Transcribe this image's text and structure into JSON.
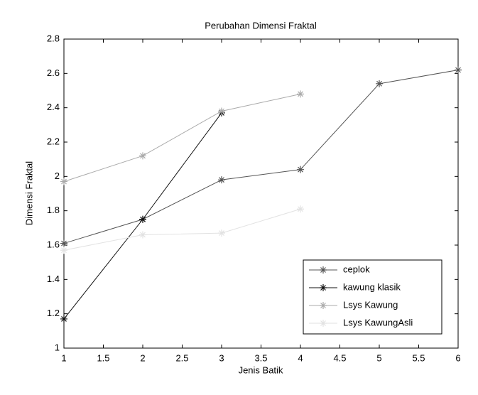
{
  "chart_data": {
    "type": "line",
    "title": "Perubahan Dimensi Fraktal",
    "x_label": "Jenis Batik",
    "y_label": "Dimensi Fraktal",
    "xlim": [
      1,
      6
    ],
    "ylim": [
      1,
      2.8
    ],
    "xticks": [
      1,
      1.5,
      2,
      2.5,
      3,
      3.5,
      4,
      4.5,
      5,
      5.5,
      6
    ],
    "yticks": [
      1,
      1.2,
      1.4,
      1.6,
      1.8,
      2,
      2.2,
      2.4,
      2.6,
      2.8
    ],
    "grid": false,
    "legend_position": "lower right",
    "series": [
      {
        "name": "ceplok",
        "color": "#555555",
        "x": [
          1,
          2,
          3,
          4,
          5,
          6
        ],
        "values": [
          1.61,
          1.75,
          1.98,
          2.04,
          2.54,
          2.62
        ]
      },
      {
        "name": "kawung klasik",
        "color": "#111111",
        "x": [
          1,
          2,
          3
        ],
        "values": [
          1.17,
          1.75,
          2.37
        ]
      },
      {
        "name": "Lsys Kawung",
        "color": "#aaaaaa",
        "x": [
          1,
          2,
          3,
          4
        ],
        "values": [
          1.97,
          2.12,
          2.38,
          2.48
        ]
      },
      {
        "name": "Lsys KawungAsli",
        "color": "#e2e2e2",
        "x": [
          1,
          2,
          3,
          4
        ],
        "values": [
          1.57,
          1.66,
          1.67,
          1.81
        ]
      }
    ]
  }
}
